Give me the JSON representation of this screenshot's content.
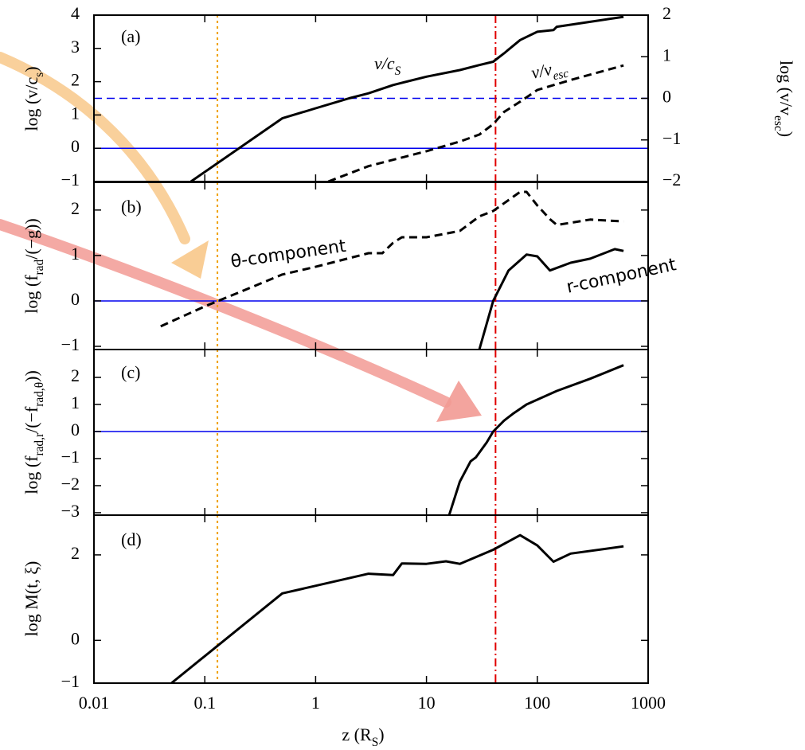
{
  "chart_data": [
    {
      "type": "line",
      "panel_label": "(a)",
      "ylabel": [
        {
          "t": "log (v/c"
        },
        {
          "sub": "s"
        },
        {
          "t": ")"
        }
      ],
      "y2label": [
        {
          "t": "log (v/v"
        },
        {
          "sub": "esc"
        },
        {
          "t": ")"
        }
      ],
      "xscale": "log",
      "xlim": [
        0.01,
        1000
      ],
      "xticks": [
        0.01,
        0.1,
        1,
        10,
        100,
        1000
      ],
      "ylim": [
        -1,
        4
      ],
      "yticks": [
        {
          "value": -1,
          "label": "−1"
        },
        0,
        1,
        2,
        3,
        4
      ],
      "y2lim": [
        -2,
        2
      ],
      "y2ticks": [
        {
          "value": -2,
          "label": "−2"
        },
        {
          "value": -1,
          "label": "−1"
        },
        0,
        1,
        2
      ],
      "hlines": [
        {
          "value": 0,
          "color": "#0000ee",
          "style": "solid"
        },
        {
          "value": 0,
          "axis": "y2",
          "color": "#0000ee",
          "style": "dashed"
        }
      ],
      "vlines": [
        {
          "value": 0.13,
          "color": "#f0a000",
          "style": "dotted"
        },
        {
          "value": 42,
          "color": "#e00000",
          "style": "dashdot"
        }
      ],
      "series": [
        {
          "name": [
            {
              "t": "v/c"
            },
            {
              "sub": "S"
            }
          ],
          "color": "#000000",
          "style": "solid",
          "x": [
            0.075,
            0.5,
            1,
            2,
            3,
            5,
            10,
            20,
            30,
            40,
            50,
            70,
            100,
            140,
            150,
            300,
            600
          ],
          "values": [
            -1,
            0.9,
            1.2,
            1.5,
            1.65,
            1.9,
            2.15,
            2.35,
            2.5,
            2.6,
            2.85,
            3.25,
            3.5,
            3.55,
            3.65,
            3.8,
            3.95
          ]
        },
        {
          "name": [
            {
              "t": "v/v"
            },
            {
              "sub": "esc"
            }
          ],
          "color": "#000000",
          "style": "dashed",
          "axis": "y2",
          "x": [
            1.3,
            3,
            10,
            20,
            30,
            40,
            50,
            70,
            100,
            200,
            600
          ],
          "values": [
            -2,
            -1.63,
            -1.27,
            -1.04,
            -0.87,
            -0.62,
            -0.33,
            -0.08,
            0.2,
            0.44,
            0.79
          ]
        }
      ]
    },
    {
      "type": "line",
      "panel_label": "(b)",
      "ylabel": [
        {
          "t": "log (f"
        },
        {
          "sub": "rad"
        },
        {
          "t": "/(−g))"
        }
      ],
      "xscale": "log",
      "xlim": [
        0.01,
        1000
      ],
      "xticks": [
        0.01,
        0.1,
        1,
        10,
        100,
        1000
      ],
      "ylim": [
        -1.07,
        2.61
      ],
      "yticks": [
        {
          "value": -1,
          "label": "−1"
        },
        0,
        1,
        2
      ],
      "hlines": [
        {
          "value": 0,
          "color": "#0000ee",
          "style": "solid"
        }
      ],
      "vlines": [
        {
          "value": 0.13,
          "color": "#f0a000",
          "style": "dotted"
        },
        {
          "value": 42,
          "color": "#e00000",
          "style": "dashdot"
        }
      ],
      "series": [
        {
          "name": "θ-component",
          "color": "#000000",
          "style": "dashed",
          "x": [
            0.04,
            0.1,
            0.2,
            0.5,
            1,
            3,
            4,
            5,
            6,
            10,
            20,
            30,
            40,
            70,
            80,
            100,
            130,
            150,
            300,
            600
          ],
          "values": [
            -0.56,
            -0.12,
            0.18,
            0.58,
            0.75,
            1.05,
            1.05,
            1.28,
            1.4,
            1.4,
            1.54,
            1.86,
            1.98,
            2.4,
            2.4,
            2.1,
            1.8,
            1.67,
            1.79,
            1.75
          ]
        },
        {
          "name": "r-component",
          "color": "#000000",
          "style": "solid",
          "x": [
            30,
            40,
            55,
            80,
            100,
            130,
            200,
            300,
            500,
            600
          ],
          "values": [
            -1.07,
            0,
            0.67,
            1.02,
            0.98,
            0.67,
            0.84,
            0.93,
            1.14,
            1.1
          ]
        }
      ]
    },
    {
      "type": "line",
      "panel_label": "(c)",
      "ylabel": [
        {
          "t": "log (f"
        },
        {
          "sub": "rad,r"
        },
        {
          "t": "/(−f"
        },
        {
          "sub": "rad,θ"
        },
        {
          "t": "))"
        }
      ],
      "xscale": "log",
      "xlim": [
        0.01,
        1000
      ],
      "xticks": [
        0.01,
        0.1,
        1,
        10,
        100,
        1000
      ],
      "ylim": [
        -3.09,
        3.03
      ],
      "yticks": [
        {
          "value": -3,
          "label": "−3"
        },
        {
          "value": -2,
          "label": "−2"
        },
        {
          "value": -1,
          "label": "−1"
        },
        0,
        1,
        2
      ],
      "hlines": [
        {
          "value": 0,
          "color": "#0000ee",
          "style": "solid"
        }
      ],
      "vlines": [
        {
          "value": 0.13,
          "color": "#f0a000",
          "style": "dotted"
        },
        {
          "value": 42,
          "color": "#e00000",
          "style": "dashdot"
        }
      ],
      "series": [
        {
          "color": "#000000",
          "style": "solid",
          "x": [
            16,
            20,
            25,
            28,
            35,
            40,
            50,
            60,
            80,
            150,
            300,
            600
          ],
          "values": [
            -3.1,
            -1.85,
            -1.1,
            -0.95,
            -0.4,
            0,
            0.4,
            0.65,
            1.0,
            1.5,
            1.95,
            2.45
          ]
        }
      ]
    },
    {
      "type": "line",
      "panel_label": "(d)",
      "ylabel": [
        {
          "t": "log M(t, ξ)"
        }
      ],
      "xlabel": [
        {
          "t": "z (R"
        },
        {
          "sub": "S"
        },
        {
          "t": ")"
        }
      ],
      "xscale": "log",
      "xlim": [
        0.01,
        1000
      ],
      "xticks": [
        0.01,
        0.1,
        1,
        10,
        100,
        1000
      ],
      "ylim": [
        -1,
        2.93
      ],
      "yticks": [
        {
          "value": -1,
          "label": "−1"
        },
        0,
        2
      ],
      "vlines": [
        {
          "value": 0.13,
          "color": "#f0a000",
          "style": "dotted"
        },
        {
          "value": 42,
          "color": "#e00000",
          "style": "dashdot"
        }
      ],
      "series": [
        {
          "color": "#000000",
          "style": "solid",
          "x": [
            0.05,
            0.5,
            3,
            5,
            6,
            10,
            15,
            20,
            40,
            70,
            100,
            140,
            200,
            600
          ],
          "values": [
            -1,
            1.1,
            1.56,
            1.53,
            1.8,
            1.79,
            1.85,
            1.79,
            2.12,
            2.46,
            2.22,
            1.84,
            2.03,
            2.2
          ]
        }
      ]
    }
  ]
}
